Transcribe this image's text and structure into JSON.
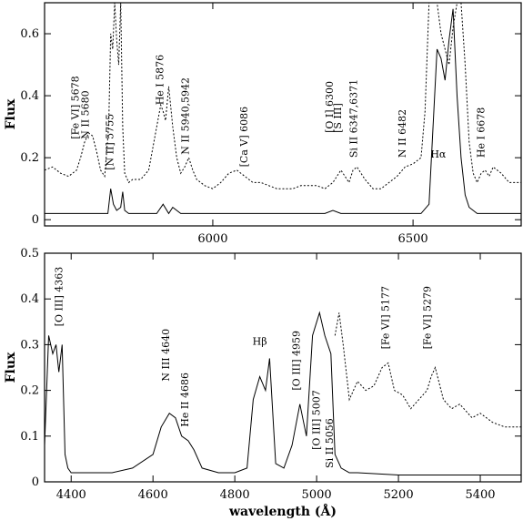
{
  "chart_data": [
    {
      "type": "line",
      "panel": "top",
      "ylabel": "Flux",
      "xlabel": "",
      "xlim": [
        5580,
        6770
      ],
      "ylim": [
        -0.02,
        0.7
      ],
      "x_ticks": [
        6000,
        6500
      ],
      "x_tick_labels": [
        "6000",
        "6500"
      ],
      "y_ticks": [
        0,
        0.2,
        0.4,
        0.6
      ],
      "y_tick_labels": [
        "0",
        "0.2",
        "0.4",
        "0.6"
      ],
      "grid": false,
      "legend": "none",
      "series": [
        {
          "style": "dashed",
          "x": [
            5580,
            5600,
            5620,
            5640,
            5660,
            5670,
            5680,
            5690,
            5700,
            5710,
            5720,
            5730,
            5740,
            5745,
            5750,
            5755,
            5760,
            5765,
            5770,
            5775,
            5780,
            5790,
            5800,
            5820,
            5840,
            5860,
            5870,
            5876,
            5882,
            5890,
            5900,
            5910,
            5920,
            5930,
            5940,
            5950,
            5960,
            5980,
            6000,
            6020,
            6040,
            6060,
            6080,
            6100,
            6120,
            6140,
            6160,
            6180,
            6200,
            6220,
            6240,
            6260,
            6280,
            6300,
            6310,
            6320,
            6330,
            6340,
            6350,
            6360,
            6370,
            6380,
            6400,
            6420,
            6440,
            6460,
            6480,
            6500,
            6520,
            6530,
            6540,
            6550,
            6560,
            6570,
            6580,
            6590,
            6600,
            6610,
            6620,
            6630,
            6640,
            6650,
            6660,
            6670,
            6680,
            6690,
            6700,
            6720,
            6740,
            6760,
            6770
          ],
          "values": [
            0.16,
            0.17,
            0.15,
            0.14,
            0.16,
            0.2,
            0.25,
            0.28,
            0.27,
            0.22,
            0.16,
            0.14,
            0.3,
            0.6,
            0.55,
            0.7,
            0.58,
            0.5,
            0.7,
            0.3,
            0.15,
            0.12,
            0.13,
            0.13,
            0.16,
            0.3,
            0.37,
            0.35,
            0.32,
            0.43,
            0.3,
            0.2,
            0.15,
            0.17,
            0.2,
            0.16,
            0.13,
            0.11,
            0.1,
            0.12,
            0.15,
            0.16,
            0.14,
            0.12,
            0.12,
            0.11,
            0.1,
            0.1,
            0.1,
            0.11,
            0.11,
            0.11,
            0.1,
            0.12,
            0.14,
            0.16,
            0.14,
            0.12,
            0.16,
            0.17,
            0.15,
            0.13,
            0.1,
            0.1,
            0.12,
            0.14,
            0.17,
            0.18,
            0.2,
            0.35,
            0.7,
            0.7,
            0.7,
            0.6,
            0.55,
            0.5,
            0.62,
            0.7,
            0.7,
            0.5,
            0.25,
            0.15,
            0.12,
            0.15,
            0.16,
            0.14,
            0.17,
            0.15,
            0.12,
            0.12,
            0.12
          ]
        },
        {
          "style": "solid",
          "x": [
            5580,
            5600,
            5650,
            5700,
            5720,
            5738,
            5745,
            5752,
            5760,
            5770,
            5775,
            5780,
            5790,
            5820,
            5860,
            5876,
            5890,
            5900,
            5920,
            6000,
            6100,
            6200,
            6280,
            6300,
            6320,
            6340,
            6400,
            6480,
            6520,
            6540,
            6550,
            6560,
            6570,
            6580,
            6590,
            6600,
            6610,
            6620,
            6630,
            6640,
            6650,
            6660,
            6700,
            6770
          ],
          "values": [
            0.02,
            0.02,
            0.02,
            0.02,
            0.02,
            0.02,
            0.1,
            0.05,
            0.03,
            0.04,
            0.09,
            0.03,
            0.02,
            0.02,
            0.02,
            0.05,
            0.02,
            0.04,
            0.02,
            0.02,
            0.02,
            0.02,
            0.02,
            0.03,
            0.02,
            0.02,
            0.02,
            0.02,
            0.02,
            0.05,
            0.3,
            0.55,
            0.52,
            0.45,
            0.58,
            0.68,
            0.4,
            0.2,
            0.08,
            0.04,
            0.03,
            0.02,
            0.02,
            0.02
          ]
        }
      ],
      "annotations": [
        {
          "text": "[Fe VI] 5678",
          "x": 5665,
          "y": 0.26
        },
        {
          "text": "N II 5680",
          "x": 5690,
          "y": 0.26
        },
        {
          "text": "[N II] 5755",
          "x": 5752,
          "y": 0.16
        },
        {
          "text": "He I 5876",
          "x": 5876,
          "y": 0.37
        },
        {
          "text": "N II 5940,5942",
          "x": 5940,
          "y": 0.21
        },
        {
          "text": "[Ca V] 6086",
          "x": 6086,
          "y": 0.17
        },
        {
          "text": "[O I] 6300",
          "x": 6300,
          "y": 0.28
        },
        {
          "text": "[S III]",
          "x": 6320,
          "y": 0.28
        },
        {
          "text": "Si II 6347,6371",
          "x": 6360,
          "y": 0.2
        },
        {
          "text": "N II 6482",
          "x": 6482,
          "y": 0.2
        },
        {
          "text": "Hα",
          "x": 6563,
          "y": 0.2
        },
        {
          "text": "He I 6678",
          "x": 6678,
          "y": 0.2
        }
      ]
    },
    {
      "type": "line",
      "panel": "bottom",
      "ylabel": "Flux",
      "xlabel": "wavelength (Å)",
      "xlim": [
        4335,
        5500
      ],
      "ylim": [
        0,
        0.5
      ],
      "x_ticks": [
        4400,
        4600,
        4800,
        5000,
        5200,
        5400
      ],
      "x_tick_labels": [
        "4400",
        "4600",
        "4800",
        "5000",
        "5200",
        "5400"
      ],
      "y_ticks": [
        0,
        0.1,
        0.2,
        0.3,
        0.4,
        0.5
      ],
      "y_tick_labels": [
        "0",
        "0.1",
        "0.2",
        "0.3",
        "0.4",
        "0.5"
      ],
      "grid": false,
      "legend": "none",
      "series": [
        {
          "style": "solid",
          "x": [
            4335,
            4345,
            4355,
            4363,
            4370,
            4378,
            4385,
            4392,
            4400,
            4450,
            4500,
            4550,
            4600,
            4620,
            4640,
            4655,
            4670,
            4686,
            4700,
            4720,
            4760,
            4800,
            4830,
            4845,
            4861,
            4875,
            4885,
            4900,
            4920,
            4940,
            4959,
            4975,
            4990,
            5007,
            5020,
            5035,
            5045,
            5060,
            5080,
            5100,
            5200,
            5300,
            5400,
            5500
          ],
          "values": [
            0.08,
            0.32,
            0.28,
            0.3,
            0.24,
            0.3,
            0.06,
            0.03,
            0.02,
            0.02,
            0.02,
            0.03,
            0.06,
            0.12,
            0.15,
            0.14,
            0.1,
            0.09,
            0.07,
            0.03,
            0.02,
            0.02,
            0.03,
            0.18,
            0.23,
            0.2,
            0.27,
            0.04,
            0.03,
            0.08,
            0.17,
            0.1,
            0.32,
            0.37,
            0.32,
            0.28,
            0.06,
            0.03,
            0.02,
            0.02,
            0.015,
            0.015,
            0.015,
            0.015
          ]
        },
        {
          "style": "dashed",
          "x": [
            5045,
            5055,
            5065,
            5080,
            5100,
            5120,
            5140,
            5160,
            5175,
            5190,
            5210,
            5230,
            5250,
            5270,
            5280,
            5290,
            5310,
            5330,
            5350,
            5380,
            5400,
            5430,
            5460,
            5500
          ],
          "values": [
            0.32,
            0.37,
            0.3,
            0.18,
            0.22,
            0.2,
            0.21,
            0.25,
            0.26,
            0.2,
            0.19,
            0.16,
            0.18,
            0.2,
            0.23,
            0.25,
            0.18,
            0.16,
            0.17,
            0.14,
            0.15,
            0.13,
            0.12,
            0.12
          ]
        }
      ],
      "annotations": [
        {
          "text": "[O III] 4363",
          "x": 4378,
          "y": 0.34
        },
        {
          "text": "N III 4640",
          "x": 4640,
          "y": 0.22
        },
        {
          "text": "He II 4686",
          "x": 4686,
          "y": 0.12
        },
        {
          "text": "Hβ",
          "x": 4861,
          "y": 0.3
        },
        {
          "text": "[O III] 4959",
          "x": 4959,
          "y": 0.2
        },
        {
          "text": "[O III] 5007",
          "x": 5007,
          "y": 0.07
        },
        {
          "text": "Si II 5056",
          "x": 5040,
          "y": 0.03
        },
        {
          "text": "[Fe VI] 5177",
          "x": 5177,
          "y": 0.29
        },
        {
          "text": "[Fe VI] 5279",
          "x": 5279,
          "y": 0.29
        }
      ]
    }
  ]
}
